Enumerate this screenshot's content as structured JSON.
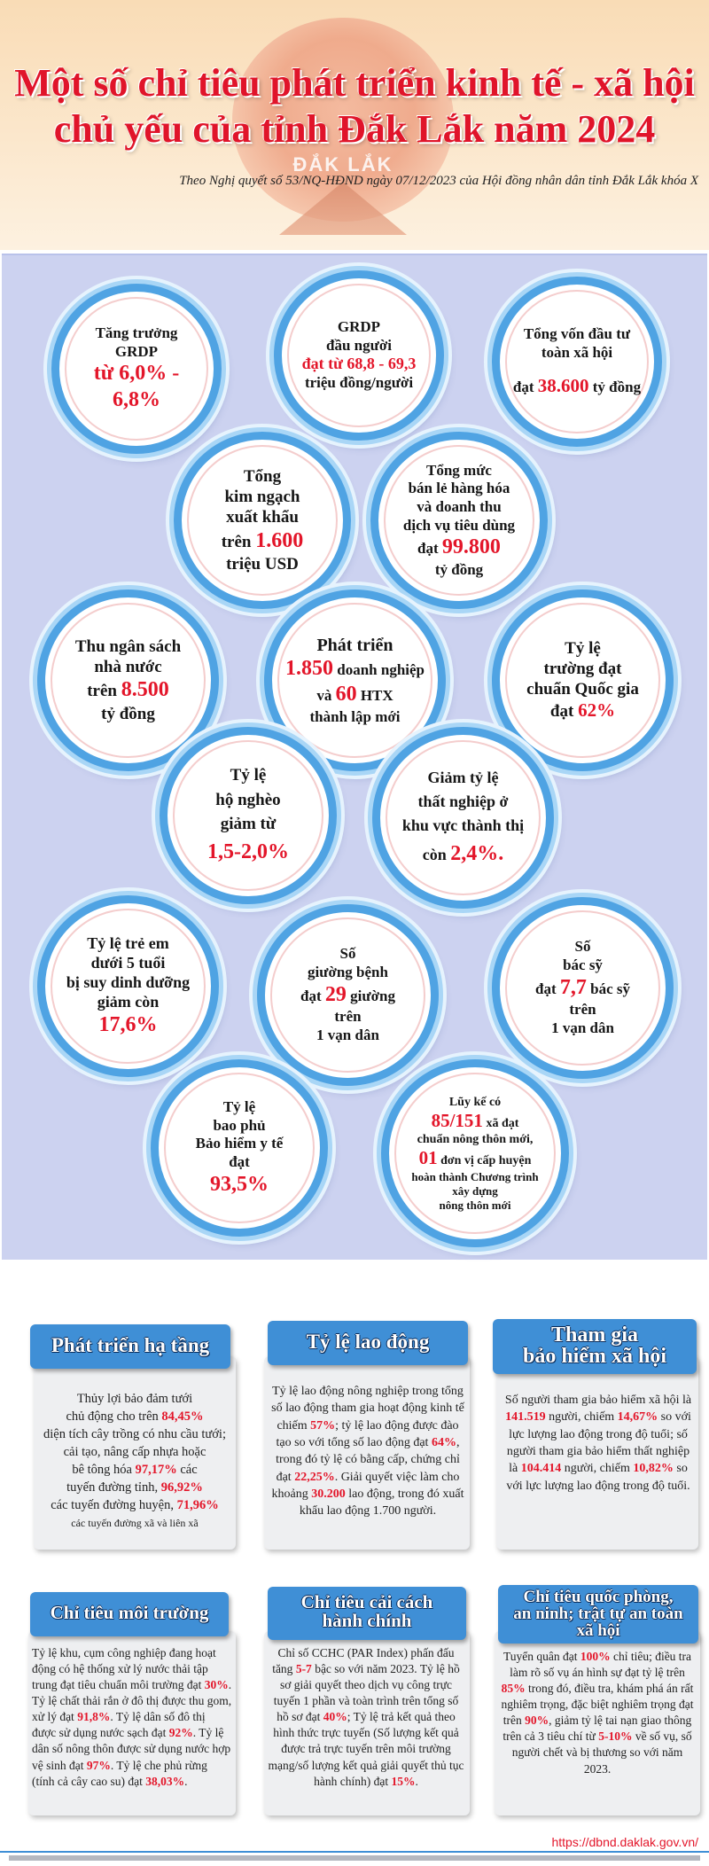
{
  "header": {
    "title_line1": "Một số chỉ tiêu phát triển kinh tế - xã hội",
    "title_line2": "chủ yếu của tỉnh Đắk Lắk năm 2024",
    "emblem_text": "ĐẮK LẮK",
    "subtitle": "Theo Nghị quyết số 53/NQ-HĐND ngày 07/12/2023 của Hội đồng nhân dân tỉnh Đắk Lắk khóa X"
  },
  "indicators": {
    "grdp_growth": {
      "label1": "Tăng trưởng",
      "label2": "GRDP",
      "value": "từ 6,0% - 6,8%"
    },
    "grdp_per_capita": {
      "label1": "GRDP",
      "label2": "đầu người",
      "value": "đạt từ 68,8 - 69,3",
      "unit": "triệu đồng/người"
    },
    "investment": {
      "label1": "Tổng vốn đầu tư",
      "label2": "toàn xã hội",
      "pre": "đạt",
      "value": "38.600",
      "unit": "tỷ đồng"
    },
    "export": {
      "label1": "Tổng",
      "label2": "kim ngạch",
      "label3": "xuất khẩu",
      "pre": "trên",
      "value": "1.600",
      "unit": "triệu USD"
    },
    "retail": {
      "label1": "Tổng mức",
      "label2": "bán lẻ hàng hóa",
      "label3": "và doanh thu",
      "label4": "dịch vụ tiêu dùng",
      "pre": "đạt",
      "value": "99.800",
      "unit": "tỷ đồng"
    },
    "budget": {
      "label1": "Thu ngân sách",
      "label2": "nhà nước",
      "pre": "trên",
      "value": "8.500",
      "unit": "tỷ đồng"
    },
    "enterprise": {
      "label1": "Phát triển",
      "value1": "1.850",
      "unit1": "doanh nghiệp",
      "pre2": "và",
      "value2": "60",
      "unit2": "HTX",
      "label3": "thành lập mới"
    },
    "schools": {
      "label1": "Tỷ lệ",
      "label2": "trường đạt",
      "label3": "chuẩn Quốc gia",
      "pre": "đạt",
      "value": "62%"
    },
    "poverty": {
      "label1": "Tỷ lệ",
      "label2": "hộ nghèo",
      "label3": "giảm từ",
      "value": "1,5-2,0%"
    },
    "unemployment": {
      "label1": "Giảm tỷ lệ",
      "label2": "thất nghiệp ở",
      "label3": "khu vực thành thị",
      "pre": "còn",
      "value": "2,4%."
    },
    "malnutrition": {
      "label1": "Tỷ lệ trẻ em",
      "label2": "dưới 5 tuổi",
      "label3": "bị suy dinh dưỡng",
      "label4": "giảm còn",
      "value": "17,6%"
    },
    "beds": {
      "label1": "Số",
      "label2": "giường bệnh",
      "pre": "đạt",
      "value": "29",
      "unit": "giường",
      "label3": "trên",
      "label4": "1 vạn dân"
    },
    "doctors": {
      "label1": "Số",
      "label2": "bác sỹ",
      "pre": "đạt",
      "value": "7,7",
      "unit": "bác sỹ",
      "label3": "trên",
      "label4": "1 vạn dân"
    },
    "insurance": {
      "label1": "Tỷ lệ",
      "label2": "bao phủ",
      "label3": "Bảo hiểm y tế",
      "label4": "đạt",
      "value": "93,5%"
    },
    "rural": {
      "label1": "Lũy kế có",
      "value1": "85/151",
      "unit1": "xã đạt",
      "label2": "chuẩn nông thôn mới,",
      "value2": "01",
      "unit2": "đơn vị cấp huyện",
      "label3": "hoàn thành Chương trình",
      "label4": "xây dựng",
      "label5": "nông thôn mới"
    }
  },
  "sections": {
    "infrastructure": {
      "title": "Phát triển hạ tầng",
      "t1": "Thủy lợi bảo đảm tưới",
      "t2": "chủ động cho trên ",
      "v1": "84,45%",
      "t3": "diện tích cây trồng có nhu cầu tưới;",
      "t4": "cải tạo, nâng cấp nhựa hoặc",
      "t5": "bê tông hóa ",
      "v2": "97,17%",
      "t6": " các",
      "t7": "tuyến đường tỉnh, ",
      "v3": "96,92%",
      "t8": "các tuyến đường huyện, ",
      "v4": "71,96%",
      "t9": "các tuyến đường xã và liên xã"
    },
    "labor": {
      "title": "Tỷ lệ lao động",
      "t1": "Tỷ lệ lao động nông nghiệp trong tổng số lao động tham gia hoạt động kinh tế chiếm ",
      "v1": "57%",
      "t2": "; tỷ lệ lao động được đào tạo so với tổng số lao động đạt ",
      "v2": "64%",
      "t3": ", trong đó tỷ lệ có bằng cấp, chứng chỉ đạt ",
      "v3": "22,25%",
      "t4": ". Giải quyết việc làm cho khoảng ",
      "v4": "30.200",
      "t5": " lao động, trong đó xuất khẩu lao động 1.700 người."
    },
    "social_insurance": {
      "title1": "Tham gia",
      "title2": "bảo hiểm xã hội",
      "t1": "Số người tham gia bảo hiểm xã hội là ",
      "v1": "141.519",
      "t2": " người, chiếm ",
      "v2": "14,67%",
      "t3": " so với lực lượng lao động trong độ tuổi; số người tham gia bảo hiểm thất nghiệp là ",
      "v3": "104.414",
      "t4": " người, chiếm ",
      "v4": "10,82%",
      "t5": " so với lực lượng lao động trong độ tuổi."
    },
    "environment": {
      "title": "Chỉ tiêu môi trường",
      "t1": "Tỷ lệ khu, cụm công nghiệp đang hoạt động có hệ thống xử lý nước thải tập trung đạt tiêu chuẩn môi trường đạt ",
      "v1": "30%",
      "t2": ". Tỷ lệ chất thải rắn ở đô thị được thu gom, xử lý đạt ",
      "v2": "91,8%",
      "t3": ". Tỷ lệ dân số đô thị được sử dụng nước sạch đạt ",
      "v3": "92%",
      "t4": ". Tỷ lệ dân số nông thôn được sử dụng nước hợp vệ sinh đạt ",
      "v4": "97%",
      "t5": ". Tỷ lệ che phủ rừng (tính cả cây cao su) đạt ",
      "v5": "38,03%",
      "t6": "."
    },
    "admin_reform": {
      "title1": "Chỉ tiêu cải cách",
      "title2": "hành chính",
      "t1": "Chỉ số CCHC (PAR Index) phấn đấu tăng ",
      "v1": "5-7",
      "t2": " bậc so với năm 2023. Tỷ lệ hồ sơ giải quyết theo dịch vụ công trực tuyến 1 phần và toàn trình trên tổng số hồ sơ đạt ",
      "v2": "40%",
      "t3": "; Tỷ lệ trả kết quả theo hình thức trực tuyến (Số lượng kết quả được trả trực tuyến trên môi trường mạng/số lượng kết quả giải quyết thủ tục hành chính) đạt ",
      "v3": "15%",
      "t4": "."
    },
    "defense": {
      "title1": "Chỉ tiêu quốc phòng,",
      "title2": "an ninh; trật tự an toàn",
      "title3": "xã hội",
      "t1": "Tuyển quân đạt ",
      "v1": "100%",
      "t2": " chỉ tiêu; điều tra làm rõ số vụ án hình sự đạt tỷ lệ trên ",
      "v2": "85%",
      "t3": " trong đó, điều tra, khám phá án rất nghiêm trọng, đặc biệt nghiêm trọng đạt trên ",
      "v3": "90%",
      "t4": ", giảm tỷ lệ tai nạn giao thông trên cả 3 tiêu chí từ ",
      "v4": "5-10%",
      "t5": " về số vụ, số người chết và bị thương so với năm 2023."
    }
  },
  "footer": {
    "url": "https://dbnd.daklak.gov.vn/"
  },
  "colors": {
    "accent_red": "#e3162a",
    "ring_blue": "#4fa3e3",
    "header_blue": "#3f8fd6",
    "panel_bg": "#ccd2f0"
  }
}
